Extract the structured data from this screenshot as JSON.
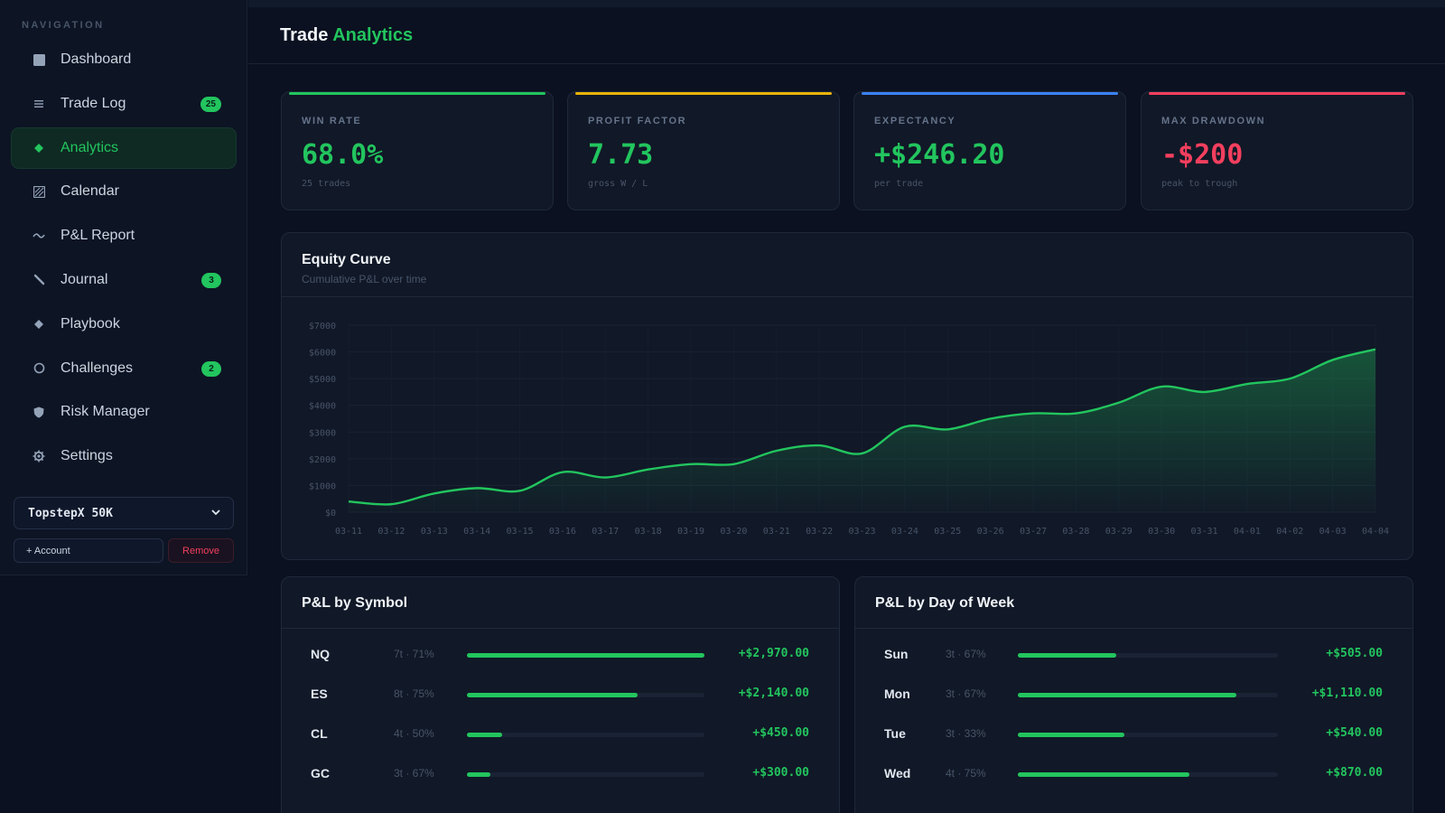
{
  "sidebar": {
    "heading": "NAVIGATION",
    "items": [
      {
        "label": "Dashboard",
        "icon": "dashboard-icon",
        "badge": ""
      },
      {
        "label": "Trade Log",
        "icon": "list-icon",
        "badge": "25"
      },
      {
        "label": "Analytics",
        "icon": "diamond-icon",
        "badge": ""
      },
      {
        "label": "Calendar",
        "icon": "calendar-icon",
        "badge": ""
      },
      {
        "label": "P&L Report",
        "icon": "wave-icon",
        "badge": ""
      },
      {
        "label": "Journal",
        "icon": "pencil-icon",
        "badge": "3"
      },
      {
        "label": "Playbook",
        "icon": "diamond-icon",
        "badge": ""
      },
      {
        "label": "Challenges",
        "icon": "circle-icon",
        "badge": "2"
      },
      {
        "label": "Risk Manager",
        "icon": "shield-icon",
        "badge": ""
      },
      {
        "label": "Settings",
        "icon": "gear-icon",
        "badge": ""
      }
    ],
    "active_index": 2,
    "account": {
      "selected": "TopstepX 50K",
      "add_label": "+ Account",
      "remove_label": "Remove"
    }
  },
  "header": {
    "title_main": "Trade",
    "title_accent": "Analytics"
  },
  "kpis": [
    {
      "label": "WIN RATE",
      "value": "68.0%",
      "sub": "25 trades",
      "accent": "#22c55e",
      "value_color": "#22c55e"
    },
    {
      "label": "PROFIT FACTOR",
      "value": "7.73",
      "sub": "gross W / L",
      "accent": "#eab308",
      "value_color": "#22c55e"
    },
    {
      "label": "EXPECTANCY",
      "value": "+$246.20",
      "sub": "per trade",
      "accent": "#3b82f6",
      "value_color": "#22c55e"
    },
    {
      "label": "MAX DRAWDOWN",
      "value": "-$200",
      "sub": "peak to trough",
      "accent": "#f43f5e",
      "value_color": "#f43f5e"
    }
  ],
  "equity": {
    "title": "Equity Curve",
    "subtitle": "Cumulative P&L over time",
    "chart_data": {
      "type": "area",
      "x": [
        "03-11",
        "03-12",
        "03-13",
        "03-14",
        "03-15",
        "03-16",
        "03-17",
        "03-18",
        "03-19",
        "03-20",
        "03-21",
        "03-22",
        "03-23",
        "03-24",
        "03-25",
        "03-26",
        "03-27",
        "03-28",
        "03-29",
        "03-30",
        "03-31",
        "04-01",
        "04-02",
        "04-03",
        "04-04"
      ],
      "values": [
        400,
        300,
        700,
        900,
        800,
        1500,
        1300,
        1600,
        1800,
        1800,
        2300,
        2500,
        2200,
        3200,
        3100,
        3500,
        3700,
        3700,
        4100,
        4700,
        4500,
        4800,
        5000,
        5700,
        6100
      ],
      "y_ticks": [
        "$0",
        "$1000",
        "$2000",
        "$3000",
        "$4000",
        "$5000",
        "$6000",
        "$7000"
      ],
      "ylim": [
        0,
        7000
      ],
      "line_color": "#22c55e",
      "grid": true
    }
  },
  "by_symbol": {
    "title": "P&L by Symbol",
    "rows": [
      {
        "name": "NQ",
        "meta": "7t · 71%",
        "value": "+$2,970.00",
        "fraction": 1.0
      },
      {
        "name": "ES",
        "meta": "8t · 75%",
        "value": "+$2,140.00",
        "fraction": 0.72
      },
      {
        "name": "CL",
        "meta": "4t · 50%",
        "value": "+$450.00",
        "fraction": 0.15
      },
      {
        "name": "GC",
        "meta": "3t · 67%",
        "value": "+$300.00",
        "fraction": 0.1
      }
    ]
  },
  "by_day": {
    "title": "P&L by Day of Week",
    "rows": [
      {
        "name": "Sun",
        "meta": "3t · 67%",
        "value": "+$505.00",
        "fraction": 0.38
      },
      {
        "name": "Mon",
        "meta": "3t · 67%",
        "value": "+$1,110.00",
        "fraction": 0.84
      },
      {
        "name": "Tue",
        "meta": "3t · 33%",
        "value": "+$540.00",
        "fraction": 0.41
      },
      {
        "name": "Wed",
        "meta": "4t · 75%",
        "value": "+$870.00",
        "fraction": 0.66
      }
    ]
  }
}
